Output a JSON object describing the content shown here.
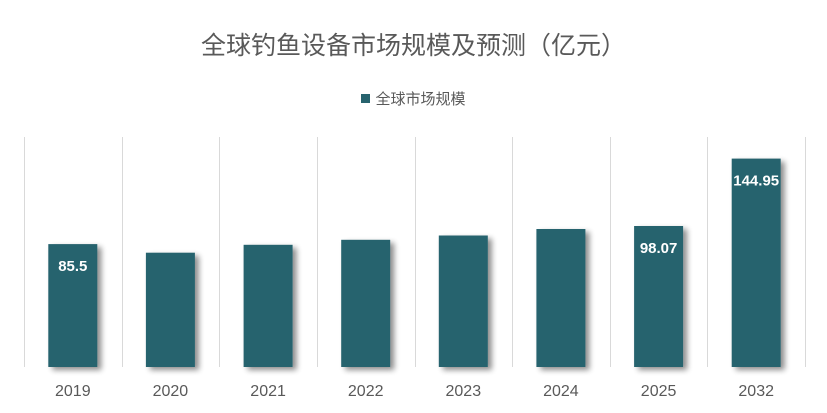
{
  "chart_data": {
    "type": "bar",
    "title": "全球钓鱼设备市场规模及预测（亿元）",
    "categories": [
      "2019",
      "2020",
      "2021",
      "2022",
      "2023",
      "2024",
      "2025",
      "2032"
    ],
    "series": [
      {
        "name": "全球市场规模",
        "values": [
          85.5,
          79.5,
          85.0,
          88.5,
          91.5,
          96.0,
          98.07,
          144.95
        ],
        "data_labels": [
          "85.5",
          "",
          "",
          "",
          "",
          "",
          "98.07",
          "144.95"
        ]
      }
    ],
    "ylim": [
      0,
      160
    ],
    "grid": "vertical category separators",
    "legend_position": "top",
    "bar_color": "#27636E",
    "text_color": "#595959",
    "grid_color": "#D9D9D9"
  }
}
